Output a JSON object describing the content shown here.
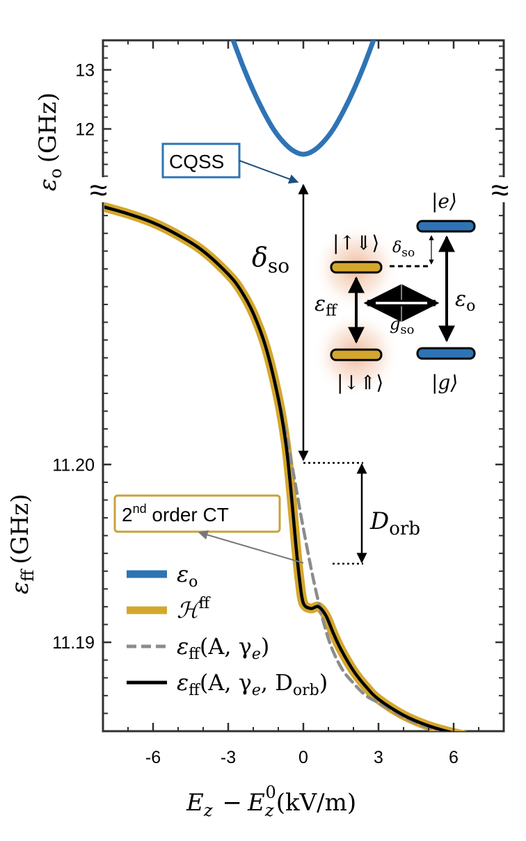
{
  "chart_data": [
    {
      "panel": "top",
      "type": "line",
      "xlim": [
        -8,
        8
      ],
      "ylim": [
        11.1,
        13.5
      ],
      "yticks": [
        12,
        13
      ],
      "ylabel_symbol": "ε",
      "ylabel_sub": "o",
      "ylabel_unit": "(GHz)",
      "series": [
        {
          "color": "#2e74b5",
          "x": [
            -2.8,
            -2.4,
            -2.0,
            -1.6,
            -1.2,
            -0.8,
            -0.4,
            0.0,
            0.4,
            0.8,
            1.2,
            1.6,
            2.0,
            2.4,
            2.8
          ],
          "y": [
            13.5,
            13.05,
            12.65,
            12.3,
            12.0,
            11.78,
            11.63,
            11.57,
            11.63,
            11.78,
            12.0,
            12.3,
            12.65,
            13.05,
            13.5
          ]
        }
      ],
      "annotations": {
        "cqss_label": "CQSS"
      }
    },
    {
      "panel": "bottom",
      "type": "line",
      "xlim": [
        -8,
        8
      ],
      "ylim": [
        11.185,
        11.2151
      ],
      "xticks": [
        -6,
        -3,
        0,
        3,
        6
      ],
      "yticks": [
        11.19,
        11.2
      ],
      "ytick_labels": [
        "11.19",
        "11.20"
      ],
      "xlabel": "E_z − E_z^0 (kV/m)",
      "ylabel_symbol": "ε",
      "ylabel_sub": "ff",
      "ylabel_unit": "(GHz)",
      "series": [
        {
          "legend": "ℋ^ff",
          "color": "#d4a72c",
          "x": [
            -8,
            -7,
            -6,
            -5,
            -4,
            -3,
            -2.5,
            -2,
            -1.5,
            -1,
            -0.7,
            -0.5,
            -0.3,
            -0.15,
            0,
            0.3,
            0.6,
            0.9,
            1.2,
            1.5,
            2,
            2.5,
            3,
            4,
            5,
            6,
            7,
            8
          ],
          "y": [
            11.2145,
            11.2141,
            11.2136,
            11.2129,
            11.212,
            11.2107,
            11.2098,
            11.2085,
            11.2066,
            11.2037,
            11.2012,
            11.1986,
            11.1955,
            11.1935,
            11.1922,
            11.1919,
            11.192,
            11.1915,
            11.1905,
            11.1896,
            11.1884,
            11.1875,
            11.1868,
            11.1859,
            11.1853,
            11.1849,
            11.1846,
            11.1844
          ]
        },
        {
          "legend": "ε_ff(A, γ_e)",
          "color": "#8c8c8c",
          "dashed": true,
          "x": [
            -8,
            -7,
            -6,
            -5,
            -4,
            -3,
            -2.5,
            -2,
            -1.5,
            -1,
            -0.5,
            0,
            0.5,
            1,
            1.5,
            2,
            2.5,
            3,
            4,
            5,
            6,
            7,
            8
          ],
          "y": [
            11.2145,
            11.2141,
            11.2136,
            11.2129,
            11.212,
            11.2107,
            11.2098,
            11.2085,
            11.2066,
            11.2038,
            11.2003,
            11.1964,
            11.1929,
            11.1902,
            11.1886,
            11.1877,
            11.187,
            11.1866,
            11.1858,
            11.1852,
            11.1848,
            11.1846,
            11.1844
          ]
        },
        {
          "legend": "ε_ff(A, γ_e, D_orb)",
          "color": "#000000",
          "x": [
            -8,
            -7,
            -6,
            -5,
            -4,
            -3,
            -2.5,
            -2,
            -1.5,
            -1,
            -0.7,
            -0.5,
            -0.3,
            -0.15,
            0,
            0.3,
            0.6,
            0.9,
            1.2,
            1.5,
            2,
            2.5,
            3,
            4,
            5,
            6,
            7,
            8
          ],
          "y": [
            11.2145,
            11.2141,
            11.2136,
            11.2129,
            11.212,
            11.2107,
            11.2098,
            11.2085,
            11.2066,
            11.2037,
            11.2012,
            11.1986,
            11.1955,
            11.1935,
            11.1922,
            11.1919,
            11.192,
            11.1915,
            11.1905,
            11.1896,
            11.1884,
            11.1875,
            11.1868,
            11.1859,
            11.1853,
            11.1849,
            11.1846,
            11.1844
          ]
        }
      ],
      "annotations": {
        "ct_label_base": "2",
        "ct_label_sup": "nd",
        "ct_label_rest": " order CT",
        "delta_so_symbol": "δ",
        "delta_so_sub": "so",
        "d_orb_symbol": "D",
        "d_orb_sub": "orb"
      }
    }
  ],
  "legend": [
    {
      "symbol": "ε",
      "sub": "o",
      "sup": "",
      "args": "",
      "color": "#2e74b5",
      "style": "thick"
    },
    {
      "symbol": "ℋ",
      "sub": "",
      "sup": "ff",
      "args": "",
      "color": "#d4a72c",
      "style": "thick"
    },
    {
      "symbol": "ε",
      "sub": "ff",
      "sup": "",
      "args": "(A, γ",
      "args_sub": "e",
      "args_end": ")",
      "color": "#8c8c8c",
      "style": "dashed"
    },
    {
      "symbol": "ε",
      "sub": "ff",
      "sup": "",
      "args": "(A, γ",
      "args_sub": "e",
      "args_mid": ", D",
      "args_mid_sub": "orb",
      "args_end": ")",
      "color": "#000000",
      "style": "solid"
    }
  ],
  "inset": {
    "ket_up_down": "|↑⇓⟩",
    "ket_down_up": "|↓⇑⟩",
    "ket_e": "|e⟩",
    "ket_g": "|g⟩",
    "eps_ff_symbol": "ε",
    "eps_ff_sub": "ff",
    "eps_o_symbol": "ε",
    "eps_o_sub": "o",
    "g_so_symbol": "g",
    "g_so_sub": "so",
    "delta_so_symbol": "δ",
    "delta_so_sub": "so",
    "color_orange": "#d4a72c",
    "color_blue": "#2e74b5"
  },
  "break_mark": "≈",
  "colors": {
    "blue": "#2e74b5",
    "gold": "#d4a72c",
    "gray": "#8c8c8c",
    "black": "#000000"
  }
}
